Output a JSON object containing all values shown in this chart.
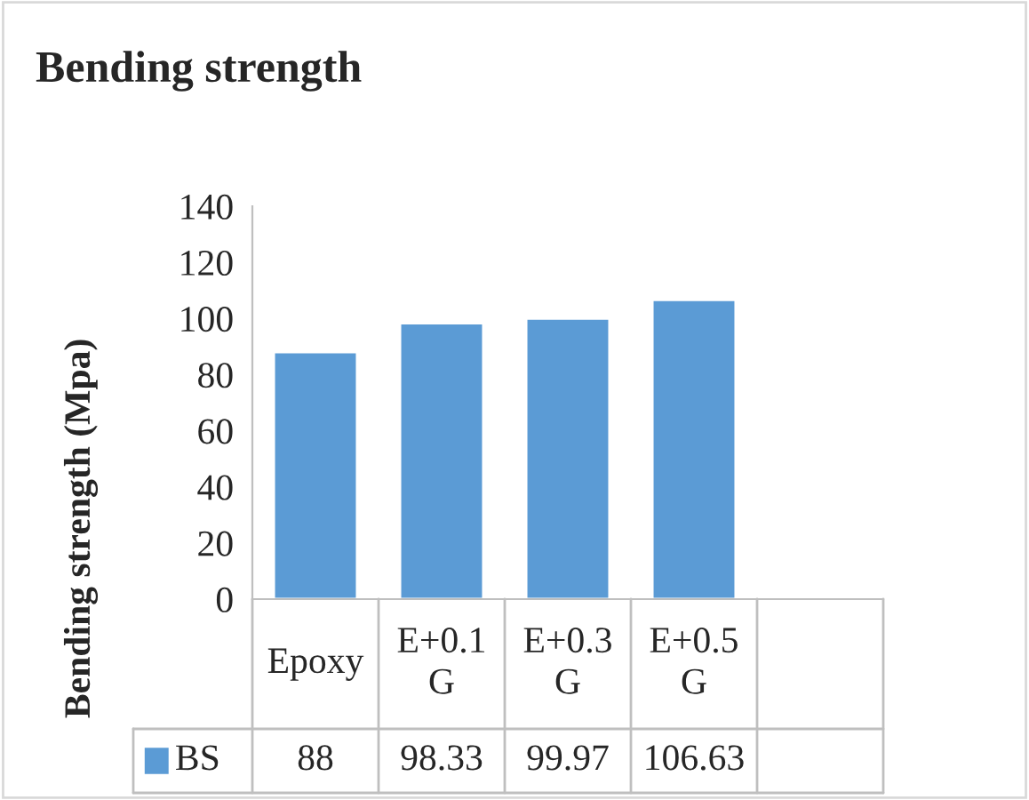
{
  "chart_data": {
    "type": "bar",
    "title": "Bending strength",
    "ylabel": "Bending strength (Mpa)",
    "categories": [
      "Epoxy",
      "E+0.1 G",
      "E+0.3 G",
      "E+0.5 G",
      null
    ],
    "series": [
      {
        "name": "BS",
        "color": "#5b9bd5",
        "values": [
          88,
          98.33,
          99.97,
          106.63,
          null
        ]
      }
    ],
    "ylim": [
      0,
      140
    ],
    "yticks": [
      0,
      20,
      40,
      60,
      80,
      100,
      120,
      140
    ],
    "data_labels": true,
    "legend": "bottom",
    "grid": false
  }
}
